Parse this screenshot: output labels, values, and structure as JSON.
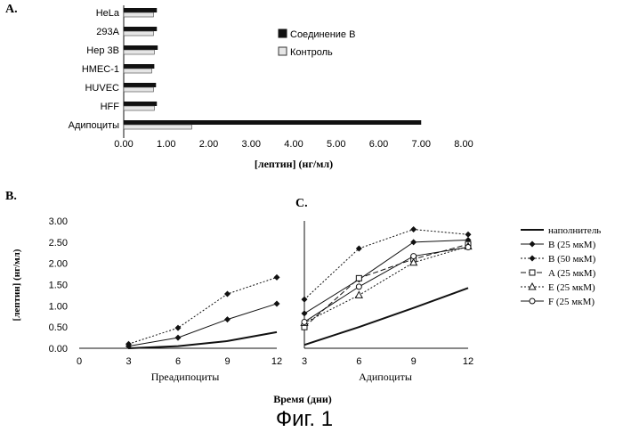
{
  "panel_a": {
    "label": "A.",
    "xlabel": "[лептин] (нг/мл)",
    "chart_data": {
      "type": "bar",
      "orientation": "horizontal",
      "categories": [
        "HeLa",
        "293A",
        "Hep 3B",
        "HMEC-1",
        "HUVEC",
        "HFF",
        "Адипоциты"
      ],
      "series": [
        {
          "name": "Соединение B",
          "values": [
            0.78,
            0.78,
            0.8,
            0.72,
            0.76,
            0.78,
            7.0
          ],
          "color": "#111111"
        },
        {
          "name": "Контроль",
          "values": [
            0.7,
            0.7,
            0.72,
            0.66,
            0.7,
            0.72,
            1.6
          ],
          "color": "#e6e6e6"
        }
      ],
      "xticks": [
        "0.00",
        "1.00",
        "2.00",
        "3.00",
        "4.00",
        "5.00",
        "6.00",
        "7.00",
        "8.00"
      ],
      "xlim": [
        0,
        8
      ],
      "legend": "right"
    }
  },
  "panel_b": {
    "label": "B.",
    "xlabel": "Преадипоциты",
    "ylabel": "[лептин] (нг/мл)",
    "chart_data": {
      "type": "line",
      "x": [
        3,
        6,
        9,
        12
      ],
      "xticks": [
        "0",
        "3",
        "6",
        "9",
        "12"
      ],
      "xlim": [
        0,
        12
      ],
      "ylim": [
        0,
        3
      ],
      "yticks": [
        "0.00",
        "0.50",
        "1.00",
        "1.50",
        "2.00",
        "2.50",
        "3.00"
      ],
      "series": [
        {
          "name": "наполнитель",
          "values": [
            0.0,
            0.05,
            0.17,
            0.38
          ],
          "style": "solid-thick",
          "marker": "none"
        },
        {
          "name": "B (25 мкМ)",
          "values": [
            0.05,
            0.25,
            0.68,
            1.05
          ],
          "style": "solid",
          "marker": "diamond-filled"
        },
        {
          "name": "B (50 мкМ)",
          "values": [
            0.1,
            0.48,
            1.28,
            1.67
          ],
          "style": "dotted",
          "marker": "diamond-filled"
        }
      ]
    }
  },
  "panel_c": {
    "label": "C.",
    "xlabel": "Адипоциты",
    "chart_data": {
      "type": "line",
      "x": [
        3,
        6,
        9,
        12
      ],
      "xticks": [
        "3",
        "6",
        "9",
        "12"
      ],
      "xlim": [
        3,
        12
      ],
      "ylim": [
        0,
        3
      ],
      "series": [
        {
          "name": "наполнитель",
          "values": [
            0.08,
            0.5,
            0.95,
            1.42
          ],
          "style": "solid-thick",
          "marker": "none"
        },
        {
          "name": "B (25 мкМ)",
          "values": [
            0.82,
            1.62,
            2.5,
            2.55
          ],
          "style": "solid",
          "marker": "diamond-filled"
        },
        {
          "name": "B (50 мкМ)",
          "values": [
            1.15,
            2.35,
            2.8,
            2.68
          ],
          "style": "dotted",
          "marker": "diamond-filled"
        },
        {
          "name": "A (25 мкМ)",
          "values": [
            0.5,
            1.65,
            2.1,
            2.45
          ],
          "style": "dashed",
          "marker": "square-open"
        },
        {
          "name": "E (25 мкМ)",
          "values": [
            0.6,
            1.25,
            2.02,
            2.4
          ],
          "style": "dotted",
          "marker": "triangle-open"
        },
        {
          "name": "F (25 мкМ)",
          "values": [
            0.62,
            1.45,
            2.17,
            2.38
          ],
          "style": "solid",
          "marker": "circle-open"
        }
      ],
      "legend": "right"
    }
  },
  "shared_xlabel": "Время (дни)",
  "figure_caption": "Фиг. 1"
}
